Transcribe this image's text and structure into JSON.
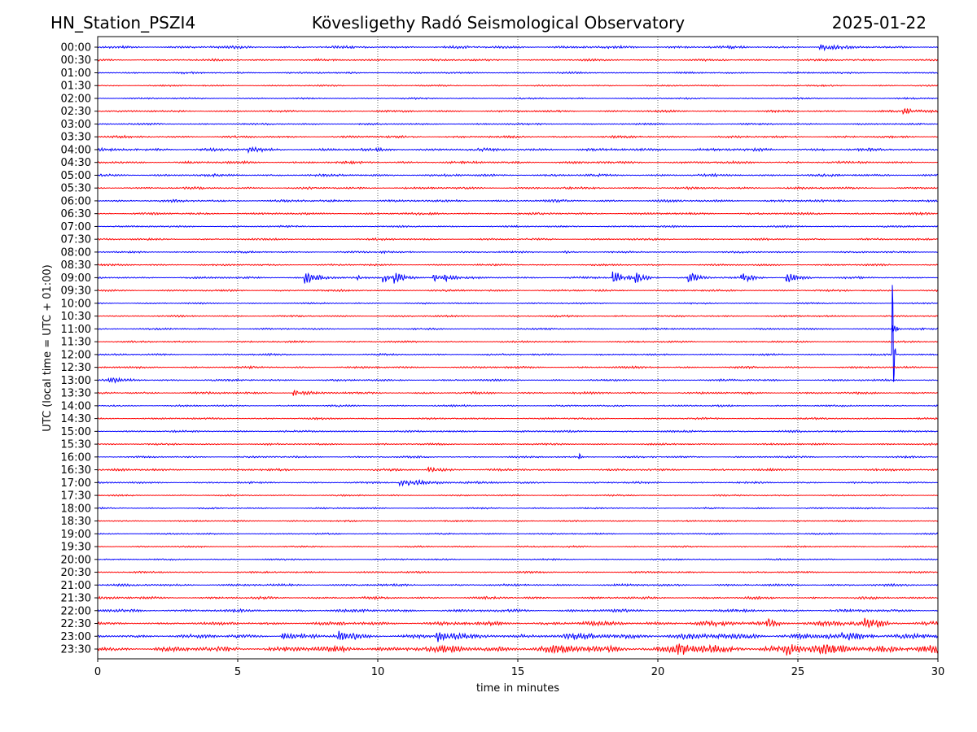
{
  "header": {
    "station": "HN_Station_PSZI4",
    "title": "Kövesligethy Radó Seismological Observatory",
    "date": "2025-01-22"
  },
  "chart_data": {
    "type": "line",
    "subtype": "helicorder",
    "xlabel": "time in minutes",
    "ylabel": "UTC (local time = UTC + 01:00)",
    "xlim": [
      0,
      30
    ],
    "xticks": [
      "0",
      "5",
      "10",
      "15",
      "20",
      "25",
      "30"
    ],
    "grid": "vertical dotted at 5-minute intervals",
    "colors": [
      "#0000ff",
      "#ff0000"
    ],
    "rows": [
      "00:00",
      "00:30",
      "01:00",
      "01:30",
      "02:00",
      "02:30",
      "03:00",
      "03:30",
      "04:00",
      "04:30",
      "05:00",
      "05:30",
      "06:00",
      "06:30",
      "07:00",
      "07:30",
      "08:00",
      "08:30",
      "09:00",
      "09:30",
      "10:00",
      "10:30",
      "11:00",
      "11:30",
      "12:00",
      "12:30",
      "13:00",
      "13:30",
      "14:00",
      "14:30",
      "15:00",
      "15:30",
      "16:00",
      "16:30",
      "17:00",
      "17:30",
      "18:00",
      "18:30",
      "19:00",
      "19:30",
      "20:00",
      "20:30",
      "21:00",
      "21:30",
      "22:00",
      "22:30",
      "23:00",
      "23:30"
    ],
    "noise_level": [
      1.2,
      0.9,
      0.8,
      0.7,
      0.7,
      0.9,
      0.8,
      1.0,
      1.3,
      1.1,
      1.1,
      1.0,
      1.1,
      1.0,
      0.8,
      0.9,
      0.8,
      0.8,
      0.9,
      0.9,
      0.7,
      0.8,
      0.8,
      0.8,
      0.8,
      0.9,
      0.9,
      1.0,
      0.8,
      0.8,
      0.9,
      0.8,
      0.8,
      1.0,
      0.8,
      0.7,
      0.7,
      0.7,
      0.7,
      0.7,
      0.7,
      0.8,
      1.0,
      1.1,
      1.3,
      1.8,
      2.4,
      3.2
    ],
    "events": [
      {
        "row": 0,
        "minute": 25.8,
        "amp": 3,
        "dur": 0.4
      },
      {
        "row": 5,
        "minute": 28.7,
        "amp": 3,
        "dur": 0.6
      },
      {
        "row": 8,
        "minute": 5.4,
        "amp": 3,
        "dur": 0.3
      },
      {
        "row": 16,
        "minute": 10.1,
        "amp": 3,
        "dur": 0.2
      },
      {
        "row": 16,
        "minute": 16.7,
        "amp": 2.5,
        "dur": 0.05
      },
      {
        "row": 18,
        "minute": 7.4,
        "amp": 7,
        "dur": 0.4
      },
      {
        "row": 18,
        "minute": 9.3,
        "amp": 4,
        "dur": 0.05
      },
      {
        "row": 18,
        "minute": 10.2,
        "amp": 5,
        "dur": 0.3
      },
      {
        "row": 18,
        "minute": 10.6,
        "amp": 6,
        "dur": 0.3
      },
      {
        "row": 18,
        "minute": 12.0,
        "amp": 5,
        "dur": 0.3
      },
      {
        "row": 18,
        "minute": 12.4,
        "amp": 4,
        "dur": 0.2
      },
      {
        "row": 18,
        "minute": 18.4,
        "amp": 8,
        "dur": 0.3
      },
      {
        "row": 18,
        "minute": 19.2,
        "amp": 7,
        "dur": 0.3
      },
      {
        "row": 18,
        "minute": 21.1,
        "amp": 6,
        "dur": 0.3
      },
      {
        "row": 18,
        "minute": 23.0,
        "amp": 5,
        "dur": 0.3
      },
      {
        "row": 18,
        "minute": 24.6,
        "amp": 7,
        "dur": 0.3
      },
      {
        "row": 24,
        "minute": 28.4,
        "amp": 135,
        "dur": 0.03
      },
      {
        "row": 22,
        "minute": 28.4,
        "amp": 10,
        "dur": 0.1
      },
      {
        "row": 26,
        "minute": 0.4,
        "amp": 2,
        "dur": 0.6
      },
      {
        "row": 27,
        "minute": 7.0,
        "amp": 3,
        "dur": 0.4
      },
      {
        "row": 32,
        "minute": 17.2,
        "amp": 5,
        "dur": 0.05
      },
      {
        "row": 34,
        "minute": 10.8,
        "amp": 3,
        "dur": 1.2
      },
      {
        "row": 33,
        "minute": 11.8,
        "amp": 2.5,
        "dur": 0.5
      },
      {
        "row": 46,
        "minute": 8.6,
        "amp": 6,
        "dur": 0.3
      },
      {
        "row": 46,
        "minute": 12.1,
        "amp": 6,
        "dur": 0.3
      },
      {
        "row": 46,
        "minute": 6.6,
        "amp": 5,
        "dur": 0.3
      },
      {
        "row": 45,
        "minute": 27.4,
        "amp": 6,
        "dur": 0.3
      },
      {
        "row": 45,
        "minute": 23.9,
        "amp": 5,
        "dur": 0.3
      },
      {
        "row": 47,
        "minute": 20.7,
        "amp": 7,
        "dur": 0.3
      },
      {
        "row": 47,
        "minute": 24.6,
        "amp": 6,
        "dur": 0.3
      }
    ]
  }
}
